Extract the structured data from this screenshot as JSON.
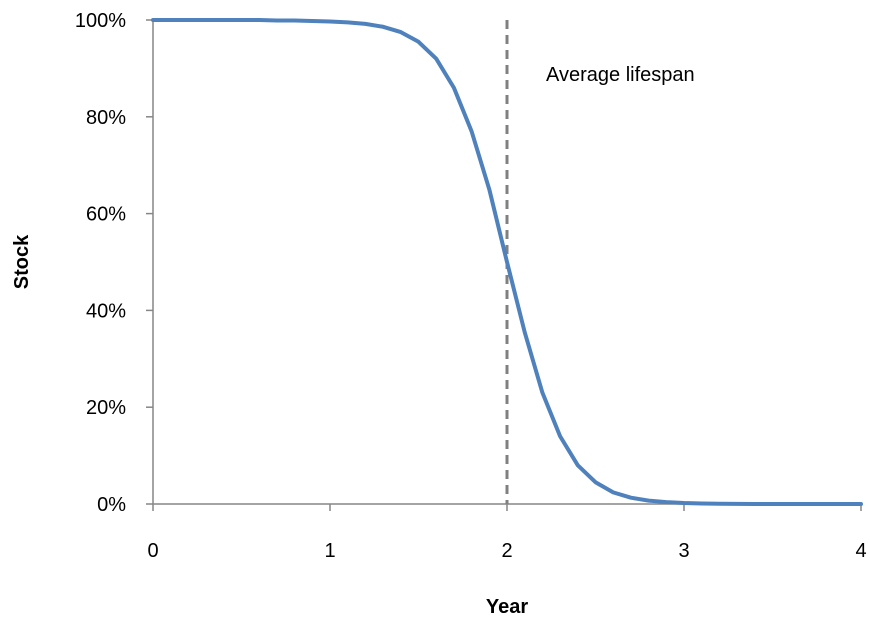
{
  "chart_data": {
    "type": "line",
    "title": "",
    "xlabel": "Year",
    "ylabel": "Stock",
    "xlim": [
      0,
      4
    ],
    "ylim": [
      0,
      100
    ],
    "x_ticks": [
      "0",
      "1",
      "2",
      "3",
      "4"
    ],
    "y_ticks": [
      "0%",
      "20%",
      "40%",
      "60%",
      "80%",
      "100%"
    ],
    "grid": false,
    "legend": "none",
    "series": [
      {
        "color": "#4f81bd",
        "points": [
          [
            0.0,
            100.0
          ],
          [
            0.1,
            100.0
          ],
          [
            0.2,
            100.0
          ],
          [
            0.3,
            100.0
          ],
          [
            0.4,
            100.0
          ],
          [
            0.5,
            100.0
          ],
          [
            0.6,
            100.0
          ],
          [
            0.7,
            99.9
          ],
          [
            0.8,
            99.9
          ],
          [
            0.9,
            99.8
          ],
          [
            1.0,
            99.7
          ],
          [
            1.1,
            99.5
          ],
          [
            1.2,
            99.2
          ],
          [
            1.3,
            98.6
          ],
          [
            1.4,
            97.5
          ],
          [
            1.5,
            95.5
          ],
          [
            1.6,
            92.0
          ],
          [
            1.7,
            86.0
          ],
          [
            1.8,
            77.0
          ],
          [
            1.9,
            65.0
          ],
          [
            2.0,
            50.0
          ],
          [
            2.1,
            35.5
          ],
          [
            2.2,
            23.0
          ],
          [
            2.3,
            14.0
          ],
          [
            2.4,
            8.0
          ],
          [
            2.5,
            4.5
          ],
          [
            2.6,
            2.4
          ],
          [
            2.7,
            1.3
          ],
          [
            2.8,
            0.7
          ],
          [
            2.9,
            0.4
          ],
          [
            3.0,
            0.2
          ],
          [
            3.1,
            0.1
          ],
          [
            3.2,
            0.05
          ],
          [
            3.4,
            0.0
          ],
          [
            3.6,
            0.0
          ],
          [
            3.8,
            0.0
          ],
          [
            4.0,
            0.0
          ]
        ]
      }
    ],
    "reference_line": {
      "x": 2,
      "style": "dashed",
      "color": "#808080",
      "label": "Average lifespan"
    }
  }
}
